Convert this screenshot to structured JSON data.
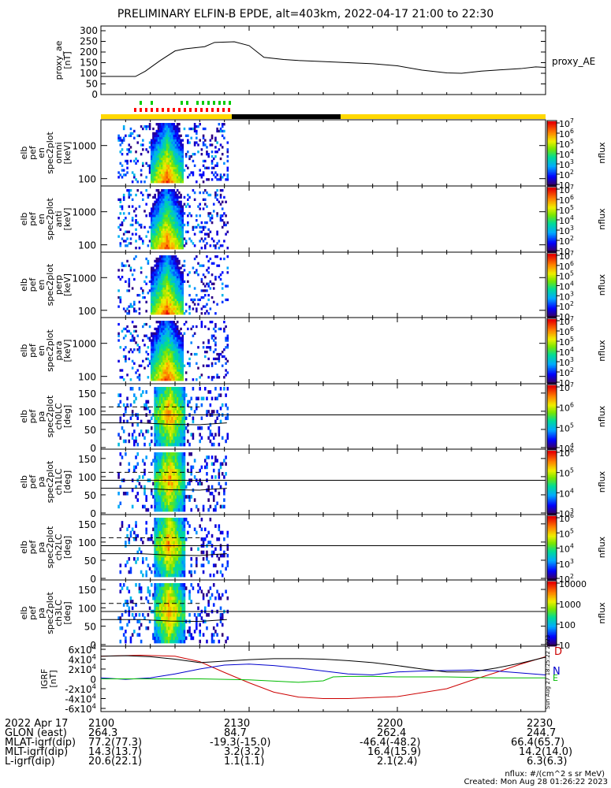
{
  "title": "PRELIMINARY ELFIN-B EPDE, alt=403km, 2022-04-17 21:00 to 22:30",
  "time_axis": {
    "labels": [
      "2100",
      "2130",
      "2200",
      "2230"
    ]
  },
  "footer": {
    "rows": [
      {
        "label": "2022 Apr 17",
        "values": [
          "2100",
          "2130",
          "2200",
          "2230"
        ]
      },
      {
        "label": "GLON (east)",
        "values": [
          "264.3",
          "84.7",
          "262.4",
          "244.7"
        ]
      },
      {
        "label": "MLAT-igrf(dip)",
        "values": [
          "77.2(77.3)",
          "-19.3(-15.0)",
          "-46.4(-48.2)",
          "66.4(65.7)"
        ]
      },
      {
        "label": "MLT-igrf(dip)",
        "values": [
          "14.3(13.7)",
          "3.2(3.2)",
          "16.4(15.9)",
          "14.2(14.0)"
        ]
      },
      {
        "label": "L-igrf(dip)",
        "values": [
          "20.6(22.1)",
          "1.1(1.1)",
          "2.1(2.4)",
          "6.3(6.3)"
        ]
      }
    ],
    "units_note": "nflux: #/(cm^2 s sr MeV)",
    "created": "Created: Mon Aug 28 01:26:22 2023"
  },
  "side_stamp": "Sun Aug 27 18:25:22 2023",
  "colors": {
    "ae_line": "#000000",
    "bar_yellow": "#ffd800",
    "bar_black": "#000000",
    "marker_green": "#00cc00",
    "marker_red": "#ff0000",
    "bfield_D": "#cc0000",
    "bfield_N": "#0000cc",
    "bfield_E": "#00bb00"
  },
  "chart_data": [
    {
      "type": "line",
      "ylabel": "proxy_ae\n[nT]",
      "ylim": [
        0,
        300
      ],
      "yticks": [
        "0",
        "50",
        "100",
        "150",
        "200",
        "250",
        "300"
      ],
      "series": [
        {
          "name": "proxy_AE",
          "x": [
            0,
            3,
            6,
            7,
            9,
            12,
            15,
            17,
            19,
            21,
            23,
            27,
            30,
            33,
            37,
            40,
            45,
            50,
            55,
            60,
            65,
            70,
            73,
            75,
            77,
            80,
            85,
            88,
            90
          ],
          "values": [
            85,
            85,
            85,
            85,
            110,
            160,
            205,
            215,
            220,
            225,
            245,
            248,
            230,
            175,
            165,
            160,
            155,
            150,
            145,
            135,
            115,
            102,
            100,
            105,
            110,
            115,
            122,
            130,
            128
          ]
        }
      ]
    },
    {
      "type": "heatmap",
      "ylabel": "elb\npef\nen\nspec2plot\nomni\n[keV]",
      "yscale": "log",
      "ylim": [
        60,
        6000
      ],
      "yticks": [
        "100",
        "1000"
      ],
      "zlabel": "nflux",
      "zlim": [
        10,
        10000000
      ],
      "zticks": [
        "10",
        "10^2",
        "10^3",
        "10^4",
        "10^5",
        "10^6",
        "10^7"
      ]
    },
    {
      "type": "heatmap",
      "ylabel": "elb\npef\nen\nspec2plot\nanti\n[keV]",
      "yscale": "log",
      "ylim": [
        60,
        6000
      ],
      "yticks": [
        "100",
        "1000"
      ],
      "zlabel": "nflux",
      "zlim": [
        10,
        10000000
      ],
      "zticks": [
        "10",
        "10^2",
        "10^3",
        "10^4",
        "10^5",
        "10^6",
        "10^7"
      ]
    },
    {
      "type": "heatmap",
      "ylabel": "elb\npef\nen\nspec2plot\nperp\n[keV]",
      "yscale": "log",
      "ylim": [
        60,
        6000
      ],
      "yticks": [
        "100",
        "1000"
      ],
      "zlabel": "nflux",
      "zlim": [
        10,
        10000000
      ],
      "zticks": [
        "10",
        "10^2",
        "10^3",
        "10^4",
        "10^5",
        "10^6",
        "10^7"
      ]
    },
    {
      "type": "heatmap",
      "ylabel": "elb\npef\nen\nspec2plot\npara\n[keV]",
      "yscale": "log",
      "ylim": [
        60,
        6000
      ],
      "yticks": [
        "100",
        "1000"
      ],
      "zlabel": "nflux",
      "zlim": [
        10,
        10000000
      ],
      "zticks": [
        "10",
        "10^2",
        "10^3",
        "10^4",
        "10^5",
        "10^6",
        "10^7"
      ]
    },
    {
      "type": "heatmap",
      "ylabel": "elb\npef\npa\nspec2plot\nch0LC\n[deg]",
      "ylim": [
        0,
        180
      ],
      "yticks": [
        "0",
        "50",
        "100",
        "150"
      ],
      "zlabel": "nflux",
      "zlim": [
        1000,
        10000000
      ],
      "zticks": [
        "10^4",
        "10^5",
        "10^6",
        "10^7"
      ]
    },
    {
      "type": "heatmap",
      "ylabel": "elb\npef\npa\nspec2plot\nch1LC\n[deg]",
      "ylim": [
        0,
        180
      ],
      "yticks": [
        "0",
        "50",
        "100",
        "150"
      ],
      "zlabel": "nflux",
      "zlim": [
        1000,
        3000000
      ],
      "zticks": [
        "10^3",
        "10^4",
        "10^5",
        "10^6"
      ]
    },
    {
      "type": "heatmap",
      "ylabel": "elb\npef\npa\nspec2plot\nch2LC\n[deg]",
      "ylim": [
        0,
        180
      ],
      "yticks": [
        "0",
        "50",
        "100",
        "150"
      ],
      "zlabel": "nflux",
      "zlim": [
        100,
        3000000
      ],
      "zticks": [
        "10^2",
        "10^3",
        "10^4",
        "10^5",
        "10^6"
      ]
    },
    {
      "type": "heatmap",
      "ylabel": "elb\npef\npa\nspec2plot\nch3LC\n[deg]",
      "ylim": [
        0,
        180
      ],
      "yticks": [
        "0",
        "50",
        "100",
        "150"
      ],
      "zlabel": "nflux",
      "zlim": [
        10,
        10000
      ],
      "zticks": [
        "10",
        "100",
        "1000",
        "10000"
      ]
    },
    {
      "type": "line",
      "ylabel": "IGRF\n[nT]",
      "ylim": [
        -60000,
        60000
      ],
      "yticks": [
        "6x10^4",
        "4x10^4",
        "2x10^4",
        "0",
        "-2x10^4",
        "-4x10^4",
        "-6x10^4"
      ],
      "series": [
        {
          "name": "D",
          "x": [
            0,
            8,
            15,
            20,
            25,
            30,
            35,
            40,
            45,
            50,
            60,
            70,
            75,
            80,
            85,
            90
          ],
          "values": [
            46000,
            48000,
            46000,
            35000,
            13000,
            -8000,
            -27000,
            -37000,
            -40000,
            -40000,
            -36000,
            -20000,
            -3000,
            13000,
            30000,
            45000
          ]
        },
        {
          "name": "N",
          "x": [
            0,
            5,
            10,
            15,
            20,
            25,
            30,
            35,
            40,
            45,
            50,
            55,
            60,
            65,
            70,
            75,
            80,
            85,
            90
          ],
          "values": [
            2000,
            -1000,
            2000,
            10000,
            20000,
            28000,
            30000,
            27000,
            22000,
            16000,
            10000,
            8000,
            14000,
            16000,
            17000,
            18000,
            16000,
            12000,
            8000
          ]
        },
        {
          "name": "E",
          "x": [
            0,
            10,
            20,
            30,
            40,
            45,
            47,
            50,
            55,
            60,
            65,
            70,
            75,
            80,
            85,
            90
          ],
          "values": [
            0,
            0,
            0,
            -2000,
            -7000,
            -4000,
            4000,
            5000,
            5000,
            4000,
            4000,
            4000,
            3000,
            2000,
            2000,
            2000
          ]
        },
        {
          "name": "",
          "x": [
            0,
            5,
            10,
            15,
            20,
            25,
            30,
            35,
            40,
            45,
            50,
            55,
            60,
            65,
            70,
            75,
            80,
            85,
            90
          ],
          "values": [
            46000,
            47000,
            45000,
            40000,
            33000,
            36000,
            39000,
            41000,
            41000,
            40000,
            37000,
            33000,
            27000,
            20000,
            14000,
            14000,
            22000,
            32000,
            44000
          ]
        }
      ]
    }
  ]
}
